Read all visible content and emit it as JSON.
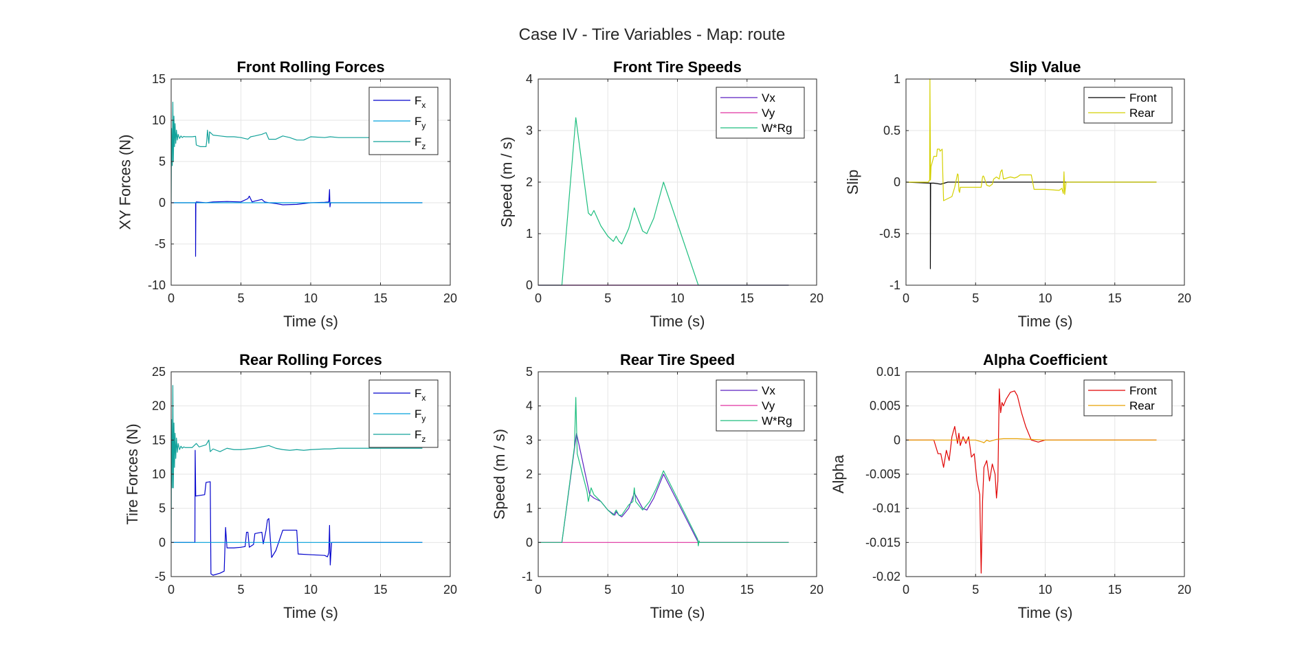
{
  "figure_title": "Case IV - Tire Variables - Map: route",
  "chart_data": [
    {
      "type": "line",
      "title": "Front Rolling Forces",
      "xlabel": "Time (s)",
      "ylabel": "XY Forces (N)",
      "xlim": [
        0,
        20
      ],
      "ylim": [
        -10,
        15
      ],
      "xticks": [
        0,
        5,
        10,
        15,
        20
      ],
      "yticks": [
        -10,
        -5,
        0,
        5,
        10,
        15
      ],
      "grid": true,
      "legend": "top-right",
      "series": [
        {
          "name": "F",
          "sub": "x",
          "color": "#0000CC",
          "x": [
            0,
            1.75,
            1.75,
            1.77,
            1.8,
            2.5,
            3,
            4,
            5,
            5.5,
            5.6,
            5.8,
            6,
            6.5,
            6.7,
            7,
            7.5,
            8,
            9,
            10,
            11,
            11.3,
            11.35,
            11.38,
            11.42,
            11.5,
            18
          ],
          "y": [
            0,
            0,
            -6.5,
            0,
            0.1,
            0,
            0.1,
            0.15,
            0.1,
            0.5,
            0.8,
            0.1,
            0.2,
            0.4,
            0.1,
            0,
            -0.1,
            -0.25,
            -0.2,
            0,
            0.05,
            0.1,
            1.6,
            -0.5,
            0,
            0,
            0
          ]
        },
        {
          "name": "F",
          "sub": "y",
          "color": "#00A0DC",
          "x": [
            0,
            18
          ],
          "y": [
            0,
            0
          ]
        },
        {
          "name": "F",
          "sub": "z",
          "color": "#12A29A",
          "x": [
            0,
            0.03,
            0.08,
            0.12,
            0.16,
            0.2,
            0.24,
            0.28,
            0.33,
            0.38,
            0.44,
            0.5,
            0.6,
            0.7,
            0.8,
            0.9,
            1,
            1.5,
            1.75,
            1.8,
            2.1,
            2.5,
            2.55,
            2.6,
            2.7,
            2.75,
            3,
            3.5,
            4,
            4.5,
            5,
            5.5,
            5.7,
            6,
            6.5,
            6.8,
            7,
            7.5,
            8,
            8.5,
            9,
            9.5,
            10,
            11,
            11.4,
            12,
            15,
            18
          ],
          "y": [
            0,
            9,
            4.5,
            12.2,
            5,
            10.5,
            6.8,
            9.6,
            7.2,
            8.8,
            7.6,
            8.3,
            7.8,
            8.1,
            7.9,
            8.05,
            8,
            8,
            8.05,
            7,
            6.8,
            6.8,
            7.5,
            8.8,
            7.2,
            8.6,
            8.2,
            8.1,
            8,
            8,
            7.9,
            7.7,
            8,
            8.1,
            8.3,
            8.5,
            7.7,
            7.7,
            8.1,
            7.9,
            7.6,
            7.6,
            8,
            7.9,
            8,
            7.9,
            7.9,
            7.9
          ]
        }
      ]
    },
    {
      "type": "line",
      "title": "Front Tire Speeds",
      "xlabel": "Time (s)",
      "ylabel": "Speed (m / s)",
      "xlim": [
        0,
        20
      ],
      "ylim": [
        0,
        4
      ],
      "xticks": [
        0,
        5,
        10,
        15,
        20
      ],
      "yticks": [
        0,
        1,
        2,
        3,
        4
      ],
      "grid": true,
      "legend": "top-right",
      "series": [
        {
          "name": "Vx",
          "color": "#5A1FC0",
          "x": [
            0,
            18
          ],
          "y": [
            0,
            0
          ]
        },
        {
          "name": "Vy",
          "color": "#E030A0",
          "x": [
            0,
            18
          ],
          "y": [
            0,
            0
          ]
        },
        {
          "name": "W*Rg",
          "color": "#1DBE7E",
          "x": [
            0,
            1.7,
            2.7,
            3.6,
            3.8,
            4,
            4.5,
            5,
            5.4,
            5.6,
            5.8,
            6,
            6.5,
            6.9,
            7.5,
            7.8,
            8.3,
            9,
            11.5,
            18
          ],
          "y": [
            0,
            0,
            3.25,
            1.4,
            1.35,
            1.45,
            1.15,
            0.95,
            0.85,
            0.95,
            0.85,
            0.8,
            1.1,
            1.5,
            1.05,
            1.0,
            1.3,
            2.0,
            0,
            0
          ]
        }
      ]
    },
    {
      "type": "line",
      "title": "Slip Value",
      "xlabel": "Time (s)",
      "ylabel": "Slip",
      "xlim": [
        0,
        20
      ],
      "ylim": [
        -1,
        1
      ],
      "xticks": [
        0,
        5,
        10,
        15,
        20
      ],
      "yticks": [
        -1,
        -0.5,
        0,
        0.5,
        1
      ],
      "grid": true,
      "legend": "top-right",
      "series": [
        {
          "name": "Front",
          "color": "#000000",
          "x": [
            0,
            1.75,
            1.75,
            1.77,
            2,
            2.5,
            3,
            5,
            9,
            11.5,
            18
          ],
          "y": [
            0,
            -0.01,
            -0.84,
            -0.01,
            -0.01,
            -0.02,
            0,
            0,
            0,
            0,
            0
          ]
        },
        {
          "name": "Rear",
          "color": "#D4D000",
          "x": [
            0,
            1.6,
            1.7,
            1.72,
            1.76,
            1.8,
            2,
            2.2,
            2.25,
            2.4,
            2.45,
            2.6,
            2.65,
            2.7,
            3,
            3.3,
            3.5,
            3.7,
            3.75,
            3.8,
            3.85,
            3.9,
            4,
            4.5,
            5,
            5.4,
            5.5,
            5.55,
            5.6,
            5.8,
            6,
            6.2,
            6.3,
            6.5,
            6.7,
            6.8,
            6.9,
            7,
            7.5,
            7.8,
            8,
            8.2,
            8.5,
            9,
            9.1,
            9.2,
            10,
            11,
            11.2,
            11.3,
            11.35,
            11.4,
            11.5,
            12,
            18
          ],
          "y": [
            0,
            0,
            0.02,
            1.0,
            0.02,
            0.15,
            0.25,
            0.25,
            0.32,
            0.32,
            0.3,
            0.32,
            0.05,
            -0.18,
            -0.16,
            -0.14,
            -0.05,
            0.08,
            0.07,
            -0.08,
            -0.1,
            -0.05,
            -0.05,
            -0.05,
            -0.05,
            -0.05,
            0.05,
            0.06,
            0.05,
            -0.03,
            -0.04,
            -0.02,
            0.03,
            0.05,
            0.03,
            0.1,
            0.12,
            0.03,
            0.05,
            0.04,
            0.05,
            0.07,
            0.07,
            0.07,
            0,
            -0.07,
            -0.07,
            -0.08,
            -0.06,
            -0.11,
            0.1,
            -0.12,
            0,
            0,
            0
          ]
        }
      ]
    },
    {
      "type": "line",
      "title": "Rear Rolling Forces",
      "xlabel": "Time (s)",
      "ylabel": "Tire Forces (N)",
      "xlim": [
        0,
        20
      ],
      "ylim": [
        -5,
        25
      ],
      "xticks": [
        0,
        5,
        10,
        15,
        20
      ],
      "yticks": [
        -5,
        0,
        5,
        10,
        15,
        20,
        25
      ],
      "grid": true,
      "legend": "top-right",
      "series": [
        {
          "name": "F",
          "sub": "x",
          "color": "#0000CC",
          "x": [
            0,
            1.7,
            1.72,
            1.76,
            2.4,
            2.5,
            2.8,
            2.85,
            3,
            3.5,
            3.8,
            3.9,
            4,
            4.5,
            5,
            5.3,
            5.4,
            5.5,
            5.6,
            5.9,
            6,
            6.5,
            6.6,
            6.8,
            6.9,
            7,
            7.2,
            7.5,
            8,
            8.5,
            9,
            9.1,
            9.2,
            10,
            11,
            11.2,
            11.3,
            11.35,
            11.4,
            11.45,
            11.5,
            12,
            18
          ],
          "y": [
            0,
            0,
            13.5,
            6.8,
            7,
            8.8,
            8.9,
            -4.6,
            -4.8,
            -4.5,
            -4.2,
            2.2,
            -0.8,
            -0.8,
            -0.7,
            -0.6,
            1.5,
            1.5,
            -0.7,
            -0.3,
            1.3,
            1.5,
            -0.2,
            1.8,
            3.3,
            3.5,
            -2.2,
            -1.2,
            1.8,
            1.8,
            1.8,
            -1.7,
            -1.7,
            -1.8,
            -1.9,
            -2.1,
            -1.5,
            2.5,
            -3.3,
            -1.5,
            0,
            0,
            0
          ]
        },
        {
          "name": "F",
          "sub": "y",
          "color": "#00A0DC",
          "x": [
            0,
            18
          ],
          "y": [
            0,
            0
          ]
        },
        {
          "name": "F",
          "sub": "z",
          "color": "#12A29A",
          "x": [
            0,
            0.03,
            0.08,
            0.12,
            0.16,
            0.2,
            0.24,
            0.28,
            0.33,
            0.38,
            0.44,
            0.5,
            0.6,
            0.7,
            0.8,
            0.9,
            1,
            1.5,
            1.8,
            2,
            2.5,
            2.7,
            2.8,
            3,
            3.5,
            4,
            4.5,
            5,
            5.5,
            6,
            6.5,
            7,
            7.5,
            8,
            8.5,
            9,
            9.5,
            10,
            11,
            11.4,
            12,
            15,
            18
          ],
          "y": [
            0,
            18,
            8,
            23,
            8,
            17.5,
            11,
            16,
            12.3,
            15.3,
            13.2,
            14.5,
            13.6,
            14.1,
            13.8,
            14,
            13.9,
            13.9,
            14.5,
            14,
            14.3,
            15,
            13.3,
            13.7,
            13.3,
            13.8,
            13.6,
            13.6,
            13.7,
            13.8,
            14,
            14.2,
            13.8,
            13.6,
            13.5,
            13.6,
            13.5,
            13.6,
            13.7,
            13.7,
            13.8,
            13.8,
            13.8
          ]
        }
      ]
    },
    {
      "type": "line",
      "title": "Rear Tire Speed",
      "xlabel": "Time (s)",
      "ylabel": "Speed (m / s)",
      "xlim": [
        0,
        20
      ],
      "ylim": [
        -1,
        5
      ],
      "xticks": [
        0,
        5,
        10,
        15,
        20
      ],
      "yticks": [
        -1,
        0,
        1,
        2,
        3,
        4,
        5
      ],
      "grid": true,
      "legend": "top-right",
      "series": [
        {
          "name": "Vx",
          "color": "#5A1FC0",
          "x": [
            0,
            1.7,
            2.75,
            3.7,
            4,
            4.5,
            5,
            5.5,
            5.6,
            5.8,
            6,
            6.5,
            6.9,
            7.5,
            7.8,
            8.3,
            9,
            11.5,
            18
          ],
          "y": [
            0,
            0,
            3.2,
            1.4,
            1.3,
            1.2,
            0.95,
            0.8,
            0.9,
            0.8,
            0.75,
            1.0,
            1.45,
            1.0,
            0.95,
            1.3,
            2.0,
            0,
            0
          ]
        },
        {
          "name": "Vy",
          "color": "#E030A0",
          "x": [
            0,
            18
          ],
          "y": [
            0,
            0
          ]
        },
        {
          "name": "W*Rg",
          "color": "#1DBE7E",
          "x": [
            0,
            1.7,
            2.6,
            2.7,
            2.8,
            3.5,
            3.6,
            3.8,
            4,
            4.5,
            5,
            5.4,
            5.6,
            5.8,
            6,
            6.5,
            6.8,
            6.9,
            7,
            7.5,
            8,
            8.5,
            9,
            11.45,
            11.5,
            11.55,
            11.6,
            18
          ],
          "y": [
            0,
            0,
            2.8,
            4.25,
            2.6,
            1.5,
            1.2,
            1.6,
            1.4,
            1.2,
            0.95,
            0.8,
            0.95,
            0.8,
            0.8,
            1.1,
            1.2,
            1.6,
            1.2,
            0.95,
            1.2,
            1.6,
            2.1,
            0.1,
            -0.1,
            0.05,
            0,
            0
          ]
        }
      ]
    },
    {
      "type": "line",
      "title": "Alpha Coefficient",
      "xlabel": "Time (s)",
      "ylabel": "Alpha",
      "xlim": [
        0,
        20
      ],
      "ylim": [
        -0.02,
        0.01
      ],
      "xticks": [
        0,
        5,
        10,
        15,
        20
      ],
      "yticks": [
        -0.02,
        -0.015,
        -0.01,
        -0.005,
        0,
        0.005,
        0.01
      ],
      "grid": true,
      "legend": "top-right",
      "series": [
        {
          "name": "Front",
          "color": "#E00000",
          "x": [
            0,
            2.0,
            2.3,
            2.5,
            2.7,
            2.9,
            3.1,
            3.3,
            3.5,
            3.7,
            3.8,
            3.9,
            4.1,
            4.3,
            4.5,
            4.7,
            4.9,
            5.1,
            5.3,
            5.4,
            5.5,
            5.6,
            5.8,
            6.0,
            6.2,
            6.4,
            6.5,
            6.6,
            6.7,
            6.8,
            6.9,
            7.0,
            7.2,
            7.5,
            7.8,
            8.0,
            8.3,
            8.6,
            9.0,
            9.5,
            10,
            18
          ],
          "y": [
            0,
            0,
            -0.002,
            -0.002,
            -0.004,
            -0.0015,
            -0.003,
            0.0005,
            0.002,
            -0.0005,
            0.001,
            -0.0008,
            0.0005,
            -0.0005,
            0.0005,
            -0.0025,
            -0.002,
            -0.006,
            -0.008,
            -0.0195,
            -0.009,
            -0.004,
            -0.003,
            -0.006,
            -0.0035,
            -0.005,
            -0.0085,
            -0.006,
            0.0075,
            0.004,
            0.0055,
            0.005,
            0.006,
            0.007,
            0.0072,
            0.0065,
            0.004,
            0.002,
            0,
            -0.0003,
            0,
            0
          ]
        },
        {
          "name": "Rear",
          "color": "#E8A000",
          "x": [
            0,
            5,
            5.5,
            5.6,
            5.8,
            6,
            6.5,
            7,
            8,
            9,
            10,
            18
          ],
          "y": [
            0,
            0,
            -0.0003,
            -0.0004,
            0,
            -0.0002,
            0.0001,
            0.0002,
            0.0002,
            0.0001,
            0,
            0
          ]
        }
      ]
    }
  ]
}
